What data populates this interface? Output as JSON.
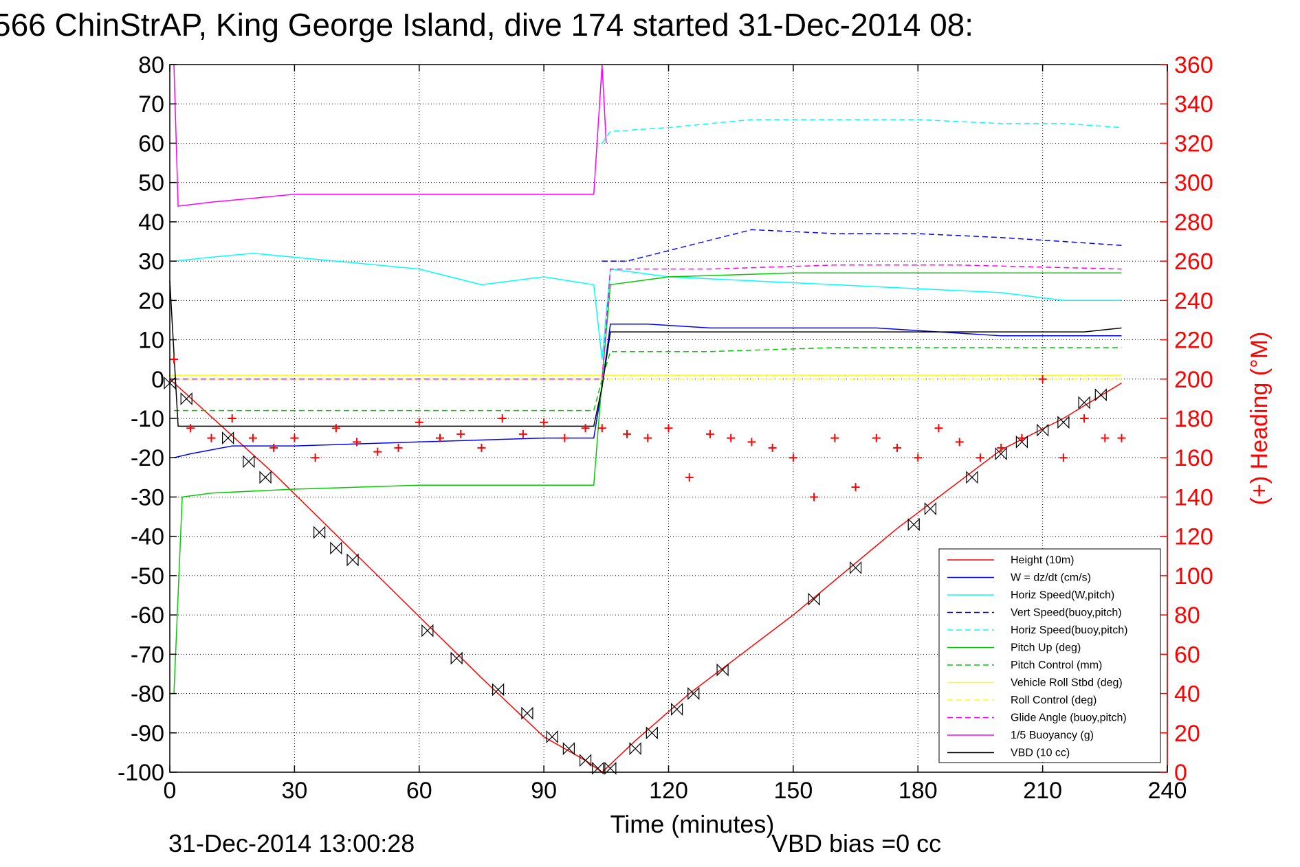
{
  "chart_data": {
    "type": "line",
    "title": "566 ChinStrAP, King George Island, dive 174 started 31-Dec-2014 08:",
    "xlabel": "Time (minutes)",
    "ylabel_right": "(+) Heading (°M)",
    "xlim": [
      0,
      240
    ],
    "ylim": [
      -100,
      80
    ],
    "ylim_right": [
      0,
      360
    ],
    "x_ticks": [
      0,
      30,
      60,
      90,
      120,
      150,
      180,
      210,
      240
    ],
    "y_ticks": [
      -100,
      -90,
      -80,
      -70,
      -60,
      -50,
      -40,
      -30,
      -20,
      -10,
      0,
      10,
      20,
      30,
      40,
      50,
      60,
      70,
      80
    ],
    "y_ticks_right": [
      0,
      20,
      40,
      60,
      80,
      100,
      120,
      140,
      160,
      180,
      200,
      220,
      240,
      260,
      280,
      300,
      320,
      340,
      360
    ],
    "grid": true,
    "legend_position": "bottom-right",
    "timestamp": "31-Dec-2014 13:00:28",
    "vbd_bias": "VBD bias =0 cc",
    "series": [
      {
        "name": "Height (10m)",
        "color": "#ff0000",
        "style": "solid",
        "x": [
          0,
          25,
          50,
          75,
          90,
          100,
          104,
          112,
          125,
          150,
          175,
          200,
          215,
          229
        ],
        "y": [
          0,
          -24,
          -50,
          -76,
          -91,
          -97,
          -100,
          -92,
          -80,
          -60,
          -38,
          -18,
          -10,
          -1
        ]
      },
      {
        "name": "W = dz/dt (cm/s)",
        "color": "#0000ff",
        "style": "solid",
        "x": [
          1,
          5,
          15,
          30,
          60,
          90,
          102,
          104,
          106,
          115,
          130,
          150,
          170,
          185,
          200,
          215,
          229
        ],
        "y": [
          -20,
          -19,
          -17,
          -17,
          -16,
          -15,
          -15,
          -2,
          14,
          14,
          13,
          13,
          13,
          12,
          11,
          11,
          11
        ]
      },
      {
        "name": "Horiz Speed(W,pitch)",
        "color": "#00ffff",
        "style": "solid",
        "x": [
          1,
          10,
          20,
          40,
          60,
          75,
          90,
          102,
          104,
          106,
          120,
          140,
          160,
          180,
          200,
          215,
          229
        ],
        "y": [
          30,
          31,
          32,
          30,
          28,
          24,
          26,
          24,
          5,
          28,
          26,
          25,
          24,
          23,
          22,
          20,
          20
        ]
      },
      {
        "name": "Vert Speed(buoy,pitch)",
        "color": "#0000ff",
        "style": "dashed",
        "x": [
          104,
          110,
          125,
          140,
          160,
          180,
          200,
          215,
          229
        ],
        "y": [
          30,
          30,
          34,
          38,
          37,
          37,
          36,
          35,
          34
        ]
      },
      {
        "name": "Horiz Speed(buoy,pitch)",
        "color": "#00ffff",
        "style": "dashed",
        "x": [
          104,
          106,
          120,
          140,
          160,
          180,
          200,
          215,
          229
        ],
        "y": [
          60,
          63,
          64,
          66,
          66,
          66,
          65,
          65,
          64
        ]
      },
      {
        "name": "Pitch Up (deg)",
        "color": "#00cc00",
        "style": "solid",
        "x": [
          1,
          3,
          10,
          30,
          60,
          90,
          102,
          104,
          106,
          120,
          150,
          180,
          200,
          215,
          229
        ],
        "y": [
          -80,
          -30,
          -29,
          -28,
          -27,
          -27,
          -27,
          0,
          24,
          26,
          27,
          27,
          27,
          27,
          27
        ]
      },
      {
        "name": "Pitch Control (mm)",
        "color": "#00cc00",
        "style": "dashed",
        "x": [
          1,
          5,
          102,
          104,
          106,
          130,
          160,
          190,
          229
        ],
        "y": [
          -8,
          -8,
          -8,
          0,
          7,
          7,
          8,
          8,
          8
        ]
      },
      {
        "name": "Vehicle Roll Stbd (deg)",
        "color": "#ffff00",
        "style": "solid",
        "x": [
          0,
          30,
          60,
          90,
          104,
          130,
          160,
          190,
          229
        ],
        "y": [
          1,
          1,
          1,
          1,
          1,
          1,
          1,
          1,
          1
        ]
      },
      {
        "name": "Roll Control (deg)",
        "color": "#ffff00",
        "style": "dashed",
        "x": [
          0,
          229
        ],
        "y": [
          0,
          0
        ]
      },
      {
        "name": "Glide Angle (buoy,pitch)",
        "color": "#ff00ff",
        "style": "dashed",
        "x": [
          1,
          102,
          104,
          106,
          130,
          160,
          190,
          229
        ],
        "y": [
          0,
          0,
          0,
          28,
          28,
          29,
          29,
          28
        ]
      },
      {
        "name": "1/5 Buoyancy (g)",
        "color": "#ff00ff",
        "style": "solid",
        "x": [
          1,
          2,
          10,
          30,
          60,
          90,
          102,
          104,
          105
        ],
        "y": [
          80,
          44,
          45,
          47,
          47,
          47,
          47,
          80,
          60
        ]
      },
      {
        "name": "VBD (10 cc)",
        "color": "#000000",
        "style": "solid",
        "x": [
          0,
          2,
          5,
          102,
          104,
          106,
          160,
          220,
          229
        ],
        "y": [
          25,
          -12,
          -12,
          -12,
          -2,
          12,
          12,
          12,
          13
        ]
      }
    ],
    "heading_series": {
      "name": "Heading",
      "color": "#ff0000",
      "marker": "+",
      "x": [
        1,
        5,
        10,
        15,
        20,
        25,
        30,
        35,
        40,
        45,
        50,
        55,
        60,
        65,
        70,
        75,
        80,
        85,
        90,
        95,
        100,
        104,
        110,
        115,
        120,
        125,
        130,
        135,
        140,
        145,
        150,
        155,
        160,
        165,
        170,
        175,
        180,
        185,
        190,
        195,
        200,
        205,
        210,
        215,
        220,
        225,
        229
      ],
      "y": [
        210,
        175,
        170,
        180,
        170,
        165,
        170,
        160,
        175,
        168,
        163,
        165,
        178,
        170,
        172,
        165,
        180,
        172,
        178,
        170,
        175,
        175,
        172,
        170,
        175,
        150,
        172,
        170,
        168,
        165,
        160,
        140,
        170,
        145,
        170,
        165,
        160,
        175,
        168,
        160,
        165,
        170,
        200,
        160,
        180,
        170,
        170
      ]
    },
    "dive_markers": {
      "x": [
        0,
        4,
        14,
        19,
        23,
        36,
        40,
        44,
        62,
        69,
        79,
        86,
        92,
        96,
        100,
        103,
        106,
        112,
        116,
        122,
        126,
        133,
        155,
        165,
        179,
        183,
        193,
        200,
        205,
        210,
        215,
        220,
        224
      ],
      "y": [
        -1,
        -5,
        -15,
        -21,
        -25,
        -39,
        -43,
        -46,
        -64,
        -71,
        -79,
        -85,
        -91,
        -94,
        -97,
        -99,
        -99,
        -94,
        -90,
        -84,
        -80,
        -74,
        -56,
        -48,
        -37,
        -33,
        -25,
        -19,
        -16,
        -13,
        -11,
        -6,
        -4
      ]
    }
  },
  "legend": {
    "items": [
      {
        "label": "Height (10m)",
        "color": "#ff0000",
        "style": "solid"
      },
      {
        "label": "W = dz/dt (cm/s)",
        "color": "#0000ff",
        "style": "solid"
      },
      {
        "label": "Horiz Speed(W,pitch)",
        "color": "#00ffff",
        "style": "solid"
      },
      {
        "label": "Vert Speed(buoy,pitch)",
        "color": "#0000ff",
        "style": "dashed"
      },
      {
        "label": "Horiz Speed(buoy,pitch)",
        "color": "#00ffff",
        "style": "dashed"
      },
      {
        "label": "Pitch Up (deg)",
        "color": "#00cc00",
        "style": "solid"
      },
      {
        "label": "Pitch Control (mm)",
        "color": "#00cc00",
        "style": "dashed"
      },
      {
        "label": "Vehicle Roll Stbd (deg)",
        "color": "#ffff00",
        "style": "solid"
      },
      {
        "label": "Roll Control (deg)",
        "color": "#ffff00",
        "style": "dashed"
      },
      {
        "label": "Glide Angle (buoy,pitch)",
        "color": "#ff00ff",
        "style": "dashed"
      },
      {
        "label": "1/5 Buoyancy (g)",
        "color": "#ff00ff",
        "style": "solid"
      },
      {
        "label": "VBD (10 cc)",
        "color": "#000000",
        "style": "solid"
      }
    ]
  }
}
